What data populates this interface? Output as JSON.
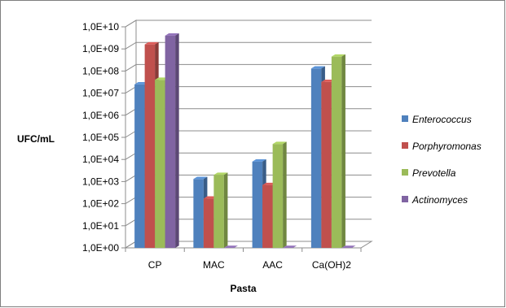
{
  "chart_data": {
    "type": "bar",
    "style": "3d-clustered-column",
    "scale": "log10",
    "xlabel": "Pasta",
    "ylabel": "UFC/mL",
    "categories": [
      "CP",
      "MAC",
      "AAC",
      "Ca(OH)2"
    ],
    "y_ticks": [
      "1,0E+00",
      "1,0E+01",
      "1,0E+02",
      "1,0E+03",
      "1,0E+04",
      "1,0E+05",
      "1,0E+06",
      "1,0E+07",
      "1,0E+08",
      "1,0E+09",
      "1,0E+10"
    ],
    "ylim": [
      1,
      10000000000
    ],
    "grid": true,
    "legend_position": "right",
    "series": [
      {
        "name": "Enterococcus",
        "color": "#4f81bd",
        "values": [
          25000000,
          1300,
          8000,
          130000000
        ]
      },
      {
        "name": "Porphyromonas",
        "color": "#c0504d",
        "values": [
          1600000000,
          170,
          700,
          32000000
        ]
      },
      {
        "name": "Prevotella",
        "color": "#9bbb59",
        "values": [
          40000000,
          2000,
          50000,
          450000000
        ]
      },
      {
        "name": "Actinomyces",
        "color": "#8064a2",
        "values": [
          4000000000,
          1,
          1,
          1
        ]
      }
    ]
  }
}
